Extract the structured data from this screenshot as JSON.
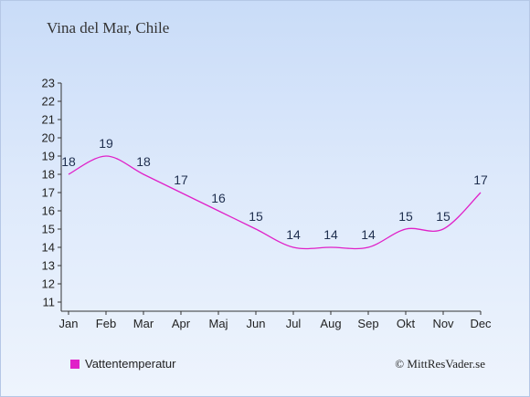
{
  "header": {
    "title": "Vina del Mar, Chile"
  },
  "chart_data": {
    "type": "line",
    "categories": [
      "Jan",
      "Feb",
      "Mar",
      "Apr",
      "Maj",
      "Jun",
      "Jul",
      "Aug",
      "Sep",
      "Okt",
      "Nov",
      "Dec"
    ],
    "series": [
      {
        "name": "Vattentemperatur",
        "values": [
          18,
          19,
          18,
          17,
          16,
          15,
          14,
          14,
          14,
          15,
          15,
          17
        ],
        "color": "#e020c8"
      }
    ],
    "yticks": [
      11,
      12,
      13,
      14,
      15,
      16,
      17,
      18,
      19,
      20,
      21,
      22,
      23
    ],
    "ylim": [
      11,
      23
    ],
    "grid": false,
    "legend": "bottom-left",
    "data_labels": true
  },
  "legend": {
    "label": "Vattentemperatur",
    "color": "#e020c8"
  },
  "footer": {
    "copyright": "© MittResVader.se"
  }
}
